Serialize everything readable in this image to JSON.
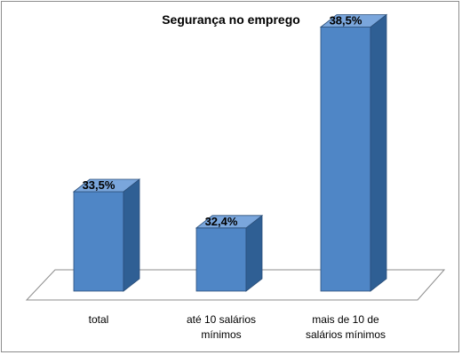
{
  "chart_data": {
    "type": "bar",
    "title": "Segurança no emprego",
    "categories": [
      [
        "total"
      ],
      [
        "até 10 salários",
        "mínimos"
      ],
      [
        "mais de 10 de",
        "salários mínimos"
      ]
    ],
    "values": [
      33.5,
      32.4,
      38.5
    ],
    "data_labels": [
      "33,5%",
      "32,4%",
      "38,5%"
    ],
    "ylim": [
      30,
      40
    ],
    "grid": false,
    "legend": "none",
    "style": "3d-column",
    "colors": {
      "bar_front": "#4f86c6",
      "bar_side": "#2f5f94",
      "bar_top": "#7aa6dc",
      "bar_edge": "#2b4f7a",
      "floor_stroke": "#8c8c8c"
    }
  }
}
